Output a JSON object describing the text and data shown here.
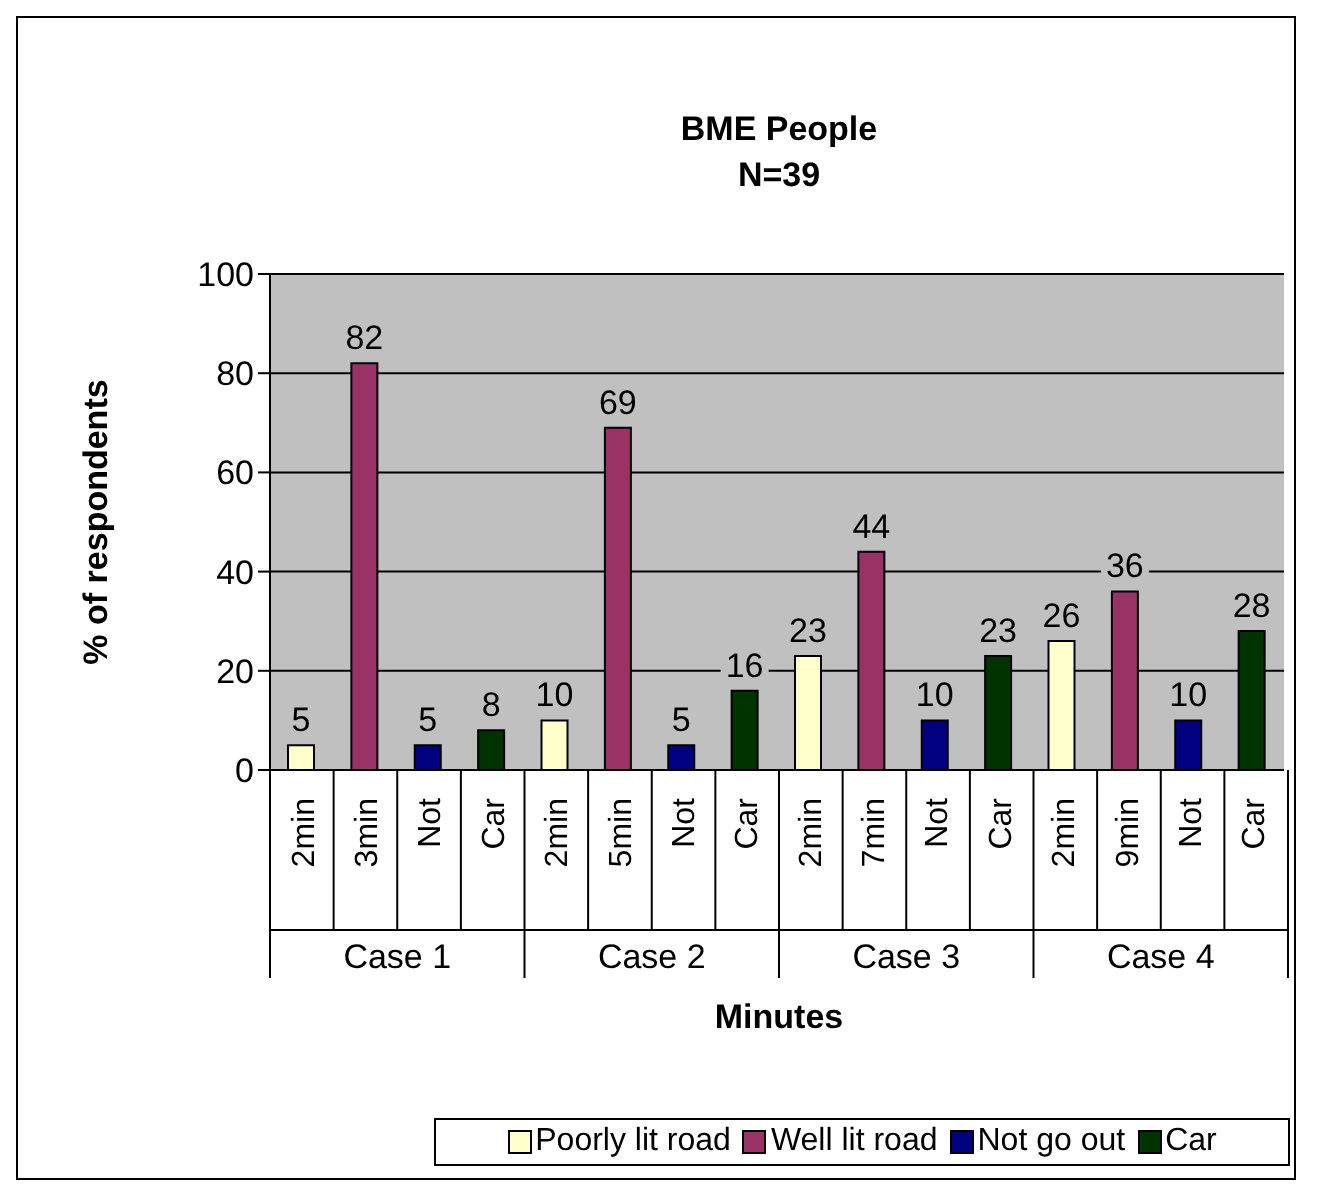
{
  "chart_data": {
    "type": "bar",
    "title": "BME People",
    "subtitle": "N=39",
    "xlabel": "Minutes",
    "ylabel": "% of respondents",
    "categories": [
      "2min",
      "3min",
      "Not",
      "Car",
      "2min",
      "5min",
      "Not",
      "Car",
      "2min",
      "7min",
      "Not",
      "Car",
      "2min",
      "9min",
      "Not",
      "Car"
    ],
    "series": [
      {
        "name": "Poorly lit road",
        "color": "#ffffcc",
        "values": [
          5,
          null,
          null,
          null,
          10,
          null,
          null,
          null,
          23,
          null,
          null,
          null,
          26,
          null,
          null,
          null
        ]
      },
      {
        "name": "Well lit road",
        "color": "#993366",
        "values": [
          null,
          82,
          null,
          null,
          null,
          69,
          null,
          null,
          null,
          44,
          null,
          null,
          null,
          36,
          null,
          null
        ]
      },
      {
        "name": "Not go out",
        "color": "#000080",
        "values": [
          null,
          null,
          5,
          null,
          null,
          null,
          5,
          null,
          null,
          null,
          10,
          null,
          null,
          null,
          10,
          null
        ]
      },
      {
        "name": "Car",
        "color": "#003300",
        "values": [
          null,
          null,
          null,
          8,
          null,
          null,
          null,
          16,
          null,
          null,
          null,
          23,
          null,
          null,
          null,
          28
        ]
      }
    ],
    "annotations": [
      "Case 1",
      "Case 2",
      "Case 3",
      "Case 4"
    ],
    "ylim": [
      0,
      100
    ],
    "yticks": [
      0,
      20,
      40,
      60,
      80,
      100
    ],
    "grid": "y",
    "data_labels": true,
    "legend": "bottom"
  }
}
